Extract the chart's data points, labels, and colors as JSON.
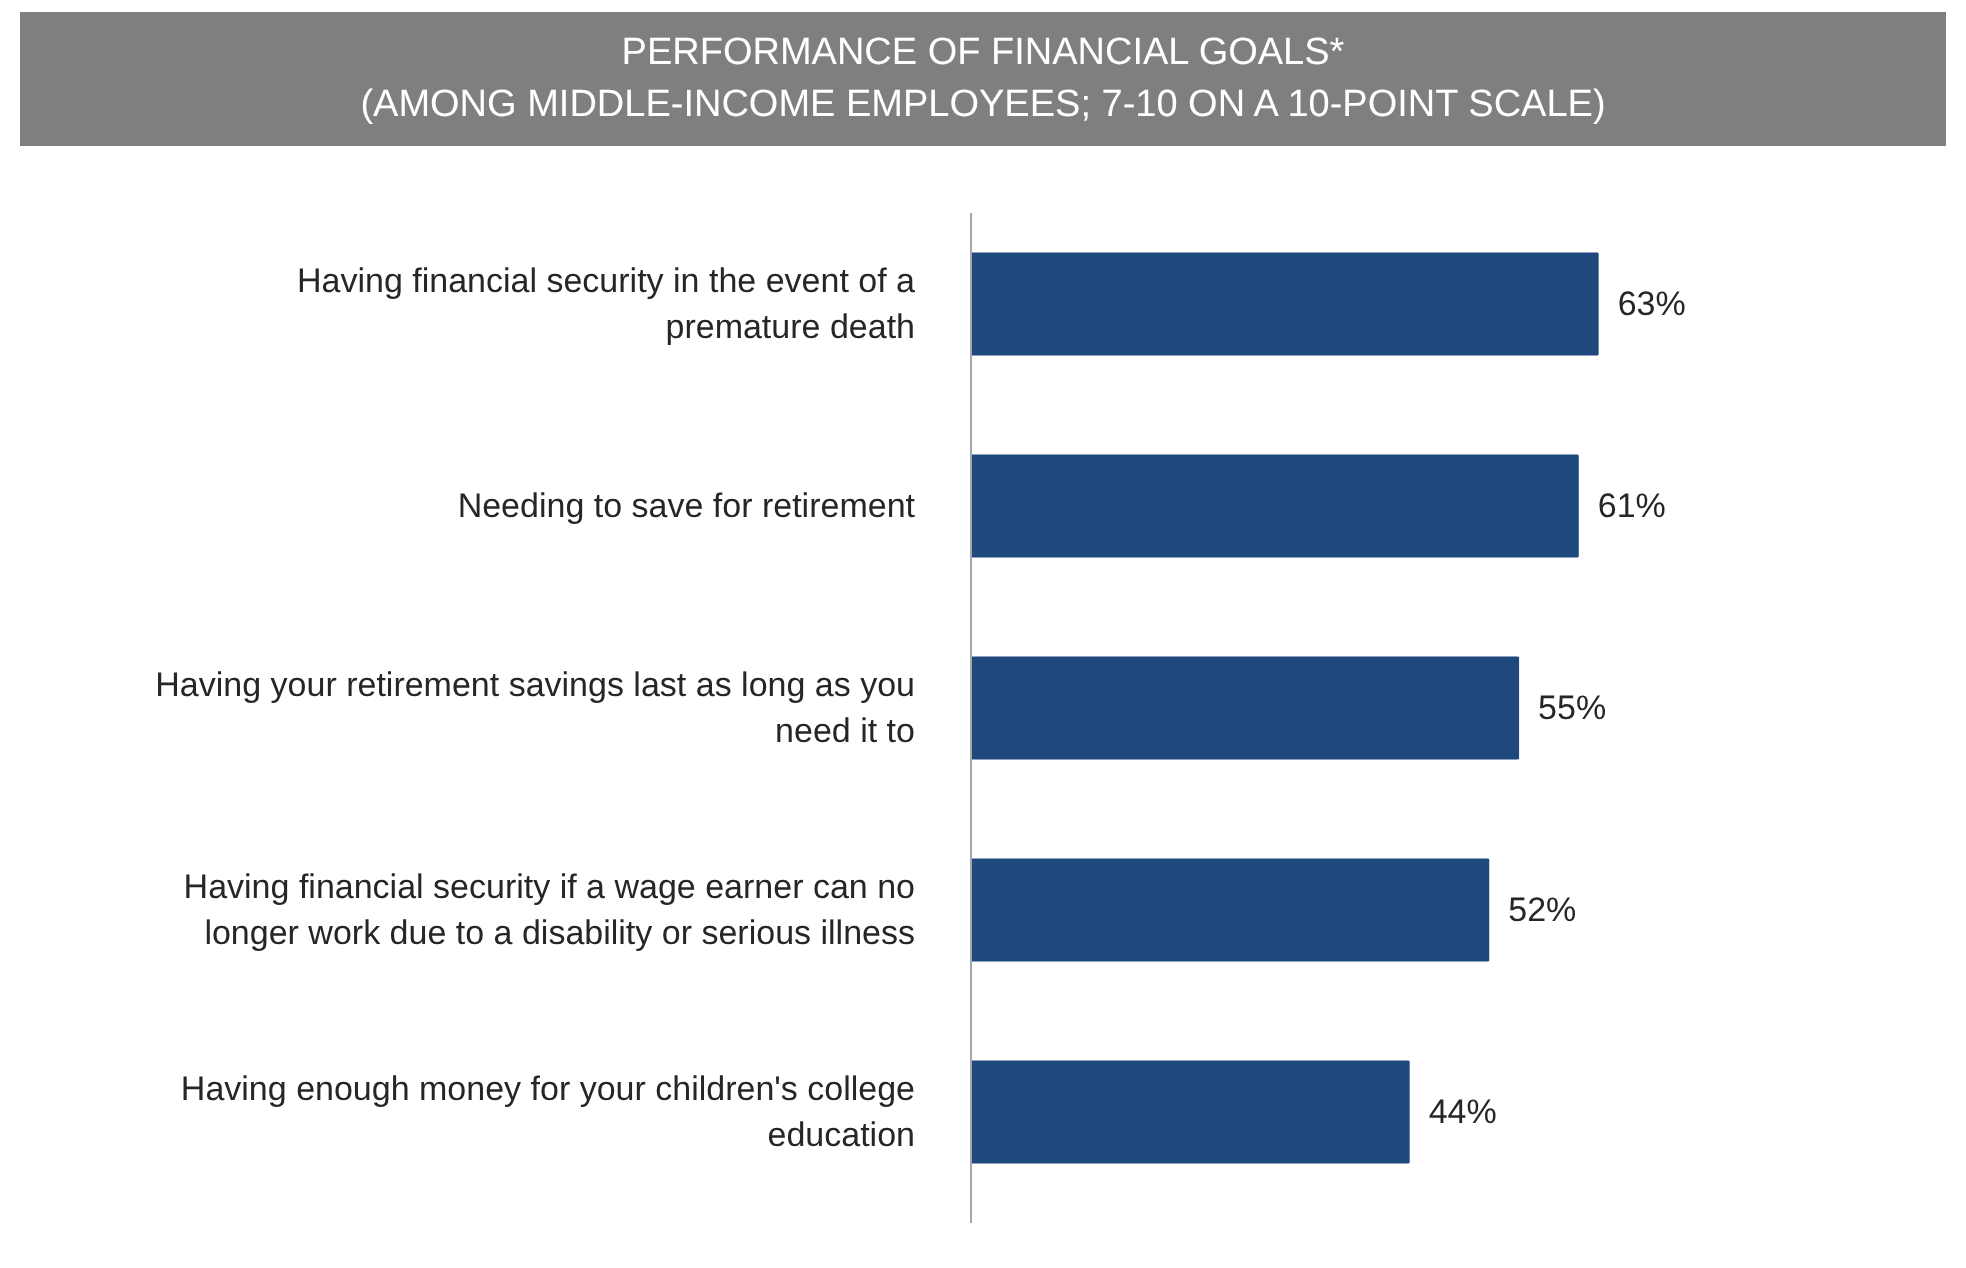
{
  "chart_data": {
    "type": "bar",
    "orientation": "horizontal",
    "title": "PERFORMANCE OF FINANCIAL GOALS*",
    "subtitle": "(AMONG MIDDLE-INCOME EMPLOYEES; 7-10 ON A 10-POINT SCALE)",
    "categories": [
      "Having financial security in the event of a premature death",
      "Needing to save for retirement",
      "Having your retirement savings last as long as you need it to",
      "Having financial security if a wage earner can no longer work due to a disability or serious illness",
      "Having enough money for your children's college education"
    ],
    "values": [
      63,
      61,
      55,
      52,
      44
    ],
    "color": "#1f497d",
    "data_labels": true,
    "value_labels": [
      "63%",
      "61%",
      "55%",
      "52%",
      "44%"
    ],
    "grid": false
  }
}
